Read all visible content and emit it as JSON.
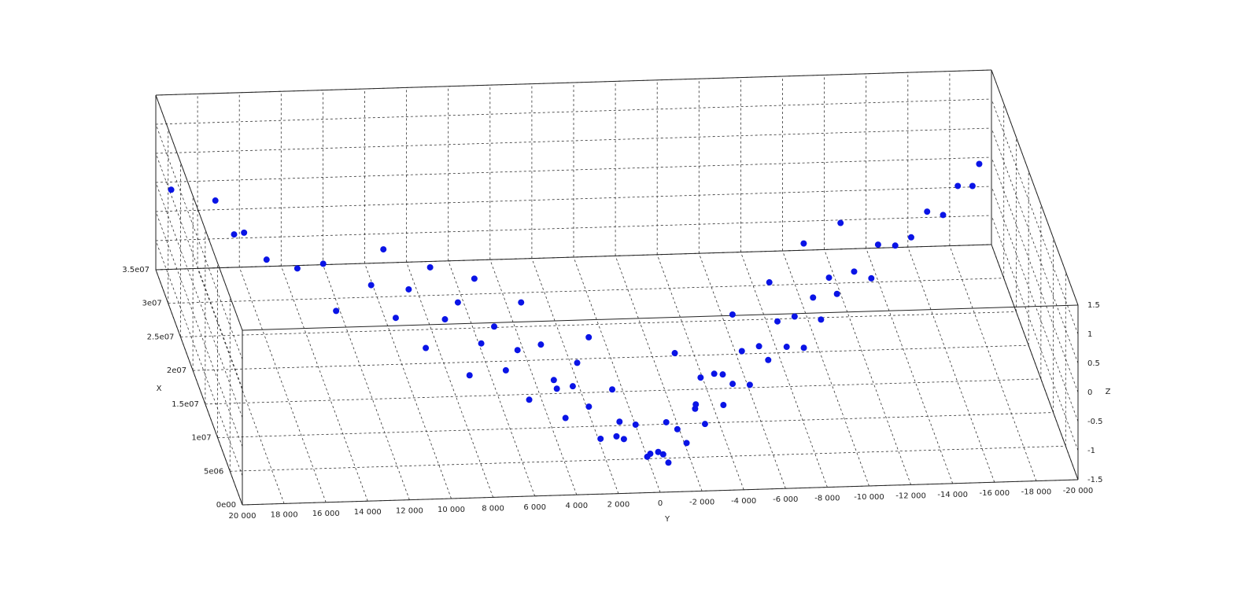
{
  "chart_data": {
    "type": "scatter3d",
    "xlabel": "X",
    "ylabel": "Y",
    "zlabel": "Z",
    "xlim": [
      0,
      35000000
    ],
    "ylim": [
      20000,
      -20000
    ],
    "zlim": [
      -1.5,
      1.5
    ],
    "xticks": [
      {
        "value": 0,
        "label": "0e00"
      },
      {
        "value": 5000000,
        "label": "5e06"
      },
      {
        "value": 10000000,
        "label": "1e07"
      },
      {
        "value": 15000000,
        "label": "1.5e07"
      },
      {
        "value": 20000000,
        "label": "2e07"
      },
      {
        "value": 25000000,
        "label": "2.5e07"
      },
      {
        "value": 30000000,
        "label": "3e07"
      },
      {
        "value": 35000000,
        "label": "3.5e07"
      }
    ],
    "yticks": [
      {
        "value": 20000,
        "label": "20 000"
      },
      {
        "value": 18000,
        "label": "18 000"
      },
      {
        "value": 16000,
        "label": "16 000"
      },
      {
        "value": 14000,
        "label": "14 000"
      },
      {
        "value": 12000,
        "label": "12 000"
      },
      {
        "value": 10000,
        "label": "10 000"
      },
      {
        "value": 8000,
        "label": "8 000"
      },
      {
        "value": 6000,
        "label": "6 000"
      },
      {
        "value": 4000,
        "label": "4 000"
      },
      {
        "value": 2000,
        "label": "2 000"
      },
      0,
      {
        "value": -2000,
        "label": "-2 000"
      },
      {
        "value": -4000,
        "label": "-4 000"
      },
      {
        "value": -6000,
        "label": "-6 000"
      },
      {
        "value": -8000,
        "label": "-8 000"
      },
      {
        "value": -10000,
        "label": "-10 000"
      },
      {
        "value": -12000,
        "label": "-12 000"
      },
      {
        "value": -14000,
        "label": "-14 000"
      },
      {
        "value": -16000,
        "label": "-16 000"
      },
      {
        "value": -18000,
        "label": "-18 000"
      },
      {
        "value": -20000,
        "label": "-20 000"
      }
    ],
    "zticks": [
      -1.5,
      -1,
      -0.5,
      0,
      0.5,
      1,
      1.5
    ],
    "grid": true,
    "series": [
      {
        "color": "#0a14e6",
        "y": [
          19500,
          17800,
          17200,
          16900,
          16000,
          15000,
          14000,
          13500,
          12000,
          11000,
          10500,
          9800,
          9000,
          8500,
          8000,
          7500,
          7000,
          6500,
          6000,
          5500,
          5000,
          4500,
          4000,
          3500,
          3000,
          2500,
          2000,
          1500,
          1000,
          500,
          0,
          -500,
          -1000,
          -1500,
          -2000,
          -2500,
          -3000,
          -3500,
          -4000,
          -4500,
          -5000,
          -5500,
          -6000,
          -6500,
          -7000,
          -7500,
          -8000,
          -8500,
          -9000,
          -9500,
          -10000,
          -11000,
          -12000,
          -12500,
          -13500,
          -14500,
          -15500,
          -16500,
          -17500,
          -18500,
          -19000,
          3000,
          1000,
          -1000,
          -3000,
          2000,
          -2000,
          5000,
          -5000,
          7000,
          -7000,
          0,
          -500,
          1500,
          -2500,
          4000,
          -4000,
          9000,
          -9000,
          11000,
          -11000
        ],
        "x": [
          33000000,
          29500000,
          27000000,
          25500000,
          24000000,
          20000000,
          18000000,
          17000000,
          15500000,
          14000000,
          13000000,
          12000000,
          11000000,
          10000000,
          9500000,
          9000000,
          8000000,
          7500000,
          7000000,
          6500000,
          6000000,
          5000000,
          4500000,
          4000000,
          3500000,
          3000000,
          2500000,
          2000000,
          1500000,
          1000000,
          800000,
          900000,
          1500000,
          2000000,
          2500000,
          3000000,
          3500000,
          4000000,
          4500000,
          5000000,
          6000000,
          6500000,
          7000000,
          7500000,
          8000000,
          9000000,
          9500000,
          10000000,
          11000000,
          12000000,
          13000000,
          14500000,
          16000000,
          17500000,
          19000000,
          21000000,
          23000000,
          25000000,
          27500000,
          30000000,
          31500000,
          10000000,
          8000000,
          6000000,
          9000000,
          12000000,
          11000000,
          14000000,
          13000000,
          16000000,
          15000000,
          4000000,
          3000000,
          5000000,
          7000000,
          8000000,
          8500000,
          17000000,
          18000000,
          19000000,
          20000000
        ],
        "z": [
          0.1,
          0.3,
          0,
          0.2,
          -0.1,
          0.2,
          0.5,
          -0.2,
          0.4,
          0,
          0.6,
          -0.3,
          0.3,
          0.7,
          -0.5,
          0.1,
          0.5,
          -0.2,
          0.2,
          -0.6,
          0.4,
          -0.1,
          -0.7,
          0.3,
          -0.4,
          -0.9,
          0,
          -0.8,
          -0.5,
          -1,
          -0.9,
          -1.1,
          -0.6,
          -0.9,
          -0.3,
          -0.7,
          0.1,
          -0.5,
          -0.2,
          0.3,
          -0.4,
          0.2,
          -0.1,
          0.5,
          0,
          0.4,
          -0.2,
          0.6,
          0.1,
          0.7,
          0.3,
          0.5,
          0.2,
          0.6,
          0.4,
          0.3,
          0.5,
          0.2,
          0.4,
          0.1,
          0.3,
          -0.8,
          -1.2,
          -1,
          -0.6,
          -0.2,
          -0.4,
          0.2,
          0,
          0.4,
          0.3,
          -1.3,
          -1.2,
          -1.1,
          -0.9,
          -0.6,
          -0.5,
          0.5,
          0.6,
          0.6,
          0.7
        ]
      }
    ]
  }
}
